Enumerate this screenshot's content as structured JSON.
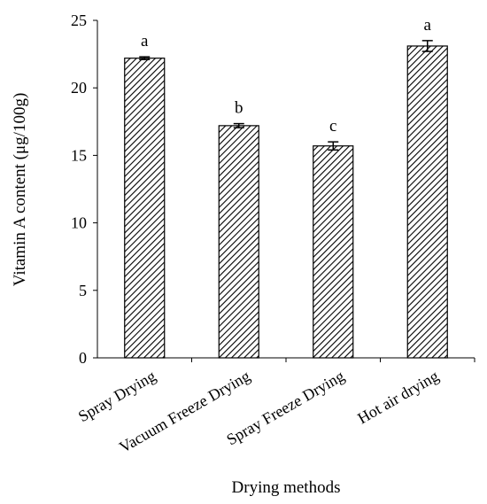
{
  "chart_data": {
    "type": "bar",
    "title": "",
    "xlabel": "Drying methods",
    "ylabel": "Vitamin A content (μg/100g)",
    "ylim": [
      0,
      25
    ],
    "yticks": [
      0,
      5,
      10,
      15,
      20,
      25
    ],
    "grid": false,
    "legend": "none",
    "bar_fill": "diagonal-hatch",
    "categories": [
      "Spray Drying",
      "Vacuum Freeze Drying",
      "Spray Freeze Drying",
      "Hot air drying"
    ],
    "values": [
      22.2,
      17.2,
      15.7,
      23.1
    ],
    "errors": [
      0.1,
      0.15,
      0.3,
      0.4
    ],
    "significance_labels": [
      "a",
      "b",
      "c",
      "a"
    ]
  }
}
